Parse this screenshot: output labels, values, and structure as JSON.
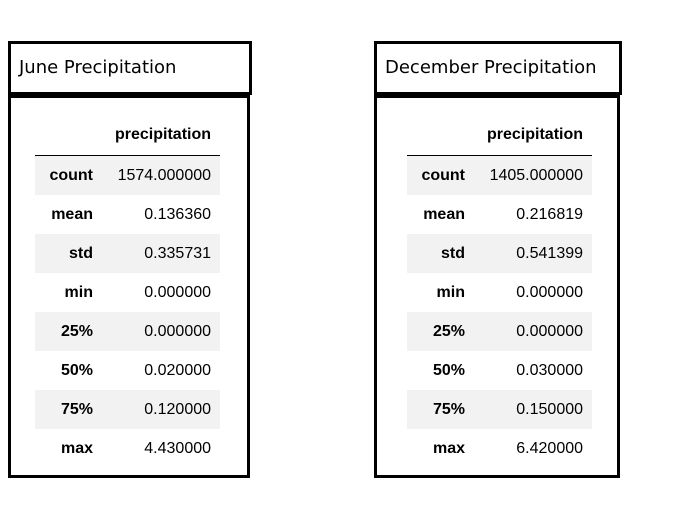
{
  "june": {
    "title": "June Precipitation",
    "column": "precipitation",
    "rows": [
      {
        "label": "count",
        "value": "1574.000000"
      },
      {
        "label": "mean",
        "value": "0.136360"
      },
      {
        "label": "std",
        "value": "0.335731"
      },
      {
        "label": "min",
        "value": "0.000000"
      },
      {
        "label": "25%",
        "value": "0.000000"
      },
      {
        "label": "50%",
        "value": "0.020000"
      },
      {
        "label": "75%",
        "value": "0.120000"
      },
      {
        "label": "max",
        "value": "4.430000"
      }
    ]
  },
  "december": {
    "title": "December Precipitation",
    "column": "precipitation",
    "rows": [
      {
        "label": "count",
        "value": "1405.000000"
      },
      {
        "label": "mean",
        "value": "0.216819"
      },
      {
        "label": "std",
        "value": "0.541399"
      },
      {
        "label": "min",
        "value": "0.000000"
      },
      {
        "label": "25%",
        "value": "0.000000"
      },
      {
        "label": "50%",
        "value": "0.030000"
      },
      {
        "label": "75%",
        "value": "0.150000"
      },
      {
        "label": "max",
        "value": "6.420000"
      }
    ]
  },
  "colors": {
    "border": "#000000",
    "row_shade": "#f2f2f2",
    "background": "#ffffff"
  }
}
